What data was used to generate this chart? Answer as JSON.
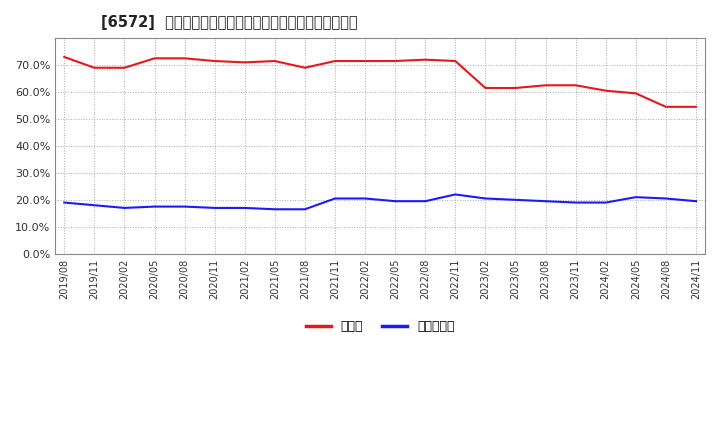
{
  "title": "[6572]  現預金、有利子負債の総資産に対する比率の推移",
  "x_labels": [
    "2019/08",
    "2019/11",
    "2020/02",
    "2020/05",
    "2020/08",
    "2020/11",
    "2021/02",
    "2021/05",
    "2021/08",
    "2021/11",
    "2022/02",
    "2022/05",
    "2022/08",
    "2022/11",
    "2023/02",
    "2023/05",
    "2023/08",
    "2023/11",
    "2024/02",
    "2024/05",
    "2024/08",
    "2024/11"
  ],
  "cash_ratio": [
    73.0,
    69.0,
    69.0,
    72.5,
    72.5,
    71.5,
    71.0,
    71.5,
    69.0,
    71.5,
    71.5,
    71.5,
    72.0,
    71.5,
    61.5,
    61.5,
    62.5,
    62.5,
    60.5,
    59.5,
    54.5,
    54.5
  ],
  "debt_ratio": [
    19.0,
    18.0,
    17.0,
    17.5,
    17.5,
    17.0,
    17.0,
    16.5,
    16.5,
    20.5,
    20.5,
    19.5,
    19.5,
    22.0,
    20.5,
    20.0,
    19.5,
    19.0,
    19.0,
    21.0,
    20.5,
    19.5
  ],
  "cash_color": "#e8171a",
  "debt_color": "#1a1aff",
  "background_color": "#ffffff",
  "grid_color": "#aaaaaa",
  "ylim": [
    0,
    80
  ],
  "yticks": [
    0,
    10,
    20,
    30,
    40,
    50,
    60,
    70
  ],
  "legend_cash": "現預金",
  "legend_debt": "有利子負債"
}
